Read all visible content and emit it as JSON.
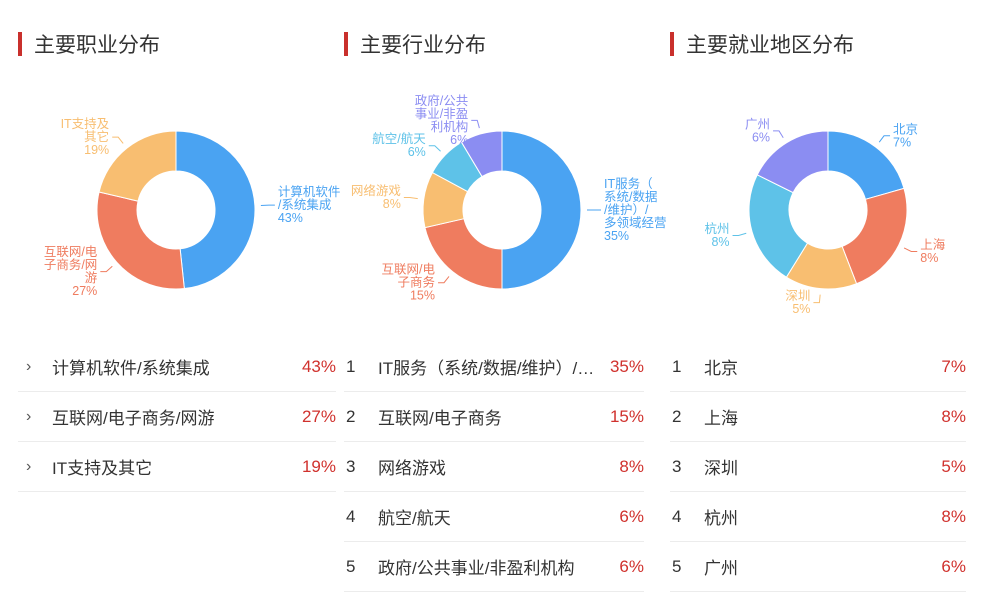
{
  "colors": {
    "accent": "#c9302c",
    "value_text": "#d0312d",
    "blue": "#4aa3f2",
    "red": "#ef7c5f",
    "orange": "#f8be71",
    "teal": "#5ec2e8",
    "purple": "#8b8df2"
  },
  "panels": [
    {
      "title": "主要职业分布",
      "rows": [
        {
          "label": "计算机软件/系统集成",
          "value": "43%"
        },
        {
          "label": "互联网/电子商务/网游",
          "value": "27%"
        },
        {
          "label": "IT支持及其它",
          "value": "19%"
        }
      ]
    },
    {
      "title": "主要行业分布",
      "rows": [
        {
          "rank": "1",
          "label": "IT服务（系统/数据/维护）/多领域经营",
          "value": "35%"
        },
        {
          "rank": "2",
          "label": "互联网/电子商务",
          "value": "15%"
        },
        {
          "rank": "3",
          "label": "网络游戏",
          "value": "8%"
        },
        {
          "rank": "4",
          "label": "航空/航天",
          "value": "6%"
        },
        {
          "rank": "5",
          "label": "政府/公共事业/非盈利机构",
          "value": "6%"
        }
      ]
    },
    {
      "title": "主要就业地区分布",
      "rows": [
        {
          "rank": "1",
          "label": "北京",
          "value": "7%"
        },
        {
          "rank": "2",
          "label": "上海",
          "value": "8%"
        },
        {
          "rank": "3",
          "label": "深圳",
          "value": "5%"
        },
        {
          "rank": "4",
          "label": "杭州",
          "value": "8%"
        },
        {
          "rank": "5",
          "label": "广州",
          "value": "6%"
        }
      ]
    }
  ],
  "chart_data": [
    {
      "type": "pie",
      "title": "主要职业分布",
      "donut": true,
      "categories": [
        "计算机软件/系统集成",
        "互联网/电子商务/网游",
        "IT支持及其它"
      ],
      "values": [
        43,
        27,
        19
      ],
      "labels": [
        {
          "lines": [
            "计算机软件",
            "/系统集成",
            "43%"
          ],
          "color": "#4aa3f2"
        },
        {
          "lines": [
            "互联网/电",
            "子商务/网",
            "游",
            "27%"
          ],
          "color": "#ef7c5f"
        },
        {
          "lines": [
            "IT支持及",
            "其它",
            "19%"
          ],
          "color": "#f8be71"
        }
      ],
      "colors": [
        "#4aa3f2",
        "#ef7c5f",
        "#f8be71"
      ]
    },
    {
      "type": "pie",
      "title": "主要行业分布",
      "donut": true,
      "categories": [
        "IT服务（系统/数据/维护）/多领域经营",
        "互联网/电子商务",
        "网络游戏",
        "航空/航天",
        "政府/公共事业/非盈利机构"
      ],
      "values": [
        35,
        15,
        8,
        6,
        6
      ],
      "labels": [
        {
          "lines": [
            "IT服务（",
            "系统/数据",
            "/维护）/",
            "多领域经营",
            "35%"
          ],
          "color": "#4aa3f2"
        },
        {
          "lines": [
            "互联网/电",
            "子商务",
            "15%"
          ],
          "color": "#ef7c5f"
        },
        {
          "lines": [
            "网络游戏",
            "8%"
          ],
          "color": "#f8be71"
        },
        {
          "lines": [
            "航空/航天",
            "6%"
          ],
          "color": "#5ec2e8"
        },
        {
          "lines": [
            "政府/公共",
            "事业/非盈",
            "利机构",
            "6%"
          ],
          "color": "#8b8df2"
        }
      ],
      "colors": [
        "#4aa3f2",
        "#ef7c5f",
        "#f8be71",
        "#5ec2e8",
        "#8b8df2"
      ]
    },
    {
      "type": "pie",
      "title": "主要就业地区分布",
      "donut": true,
      "categories": [
        "北京",
        "上海",
        "深圳",
        "杭州",
        "广州"
      ],
      "values": [
        7,
        8,
        5,
        8,
        6
      ],
      "labels": [
        {
          "lines": [
            "北京",
            "7%"
          ],
          "color": "#4aa3f2"
        },
        {
          "lines": [
            "上海",
            "8%"
          ],
          "color": "#ef7c5f"
        },
        {
          "lines": [
            "深圳",
            "5%"
          ],
          "color": "#f8be71"
        },
        {
          "lines": [
            "杭州",
            "8%"
          ],
          "color": "#5ec2e8"
        },
        {
          "lines": [
            "广州",
            "6%"
          ],
          "color": "#8b8df2"
        }
      ],
      "colors": [
        "#4aa3f2",
        "#ef7c5f",
        "#f8be71",
        "#5ec2e8",
        "#8b8df2"
      ]
    }
  ]
}
